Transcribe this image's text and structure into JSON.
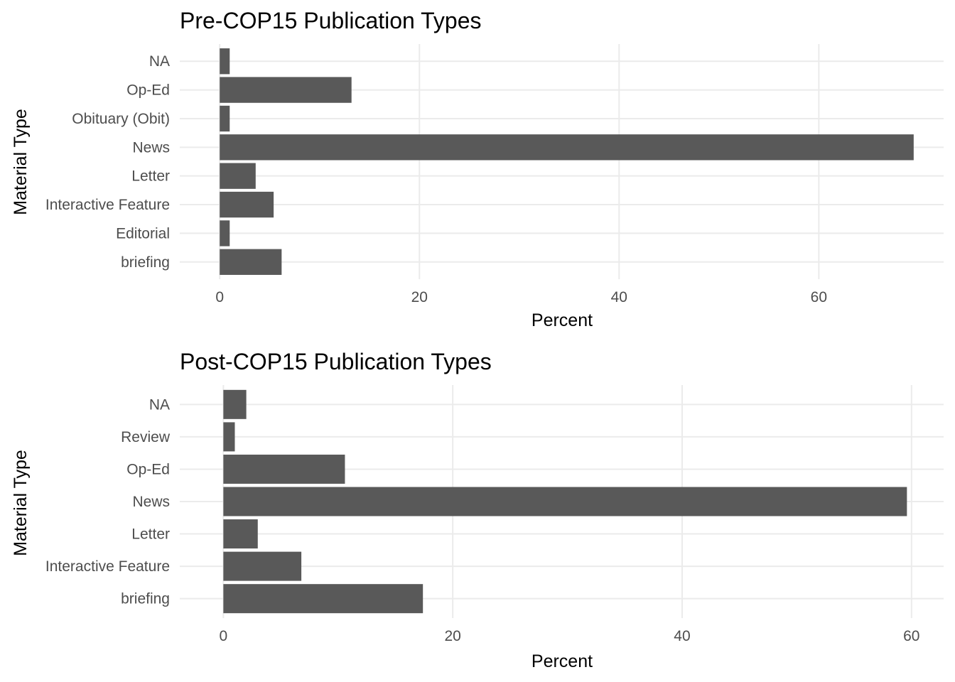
{
  "chart_data": [
    {
      "type": "bar",
      "orientation": "horizontal",
      "title": "Pre-COP15 Publication Types",
      "xlabel": "Percent",
      "ylabel": "Material Type",
      "categories": [
        "NA",
        "Op-Ed",
        "Obituary (Obit)",
        "News",
        "Letter",
        "Interactive Feature",
        "Editorial",
        "briefing"
      ],
      "values": [
        1.0,
        13.2,
        1.0,
        69.5,
        3.6,
        5.4,
        1.0,
        6.2
      ],
      "xlim": [
        -4,
        72.5
      ],
      "xticks": [
        0,
        20,
        40,
        60
      ],
      "xtick_labels": [
        "0",
        "20",
        "40",
        "60"
      ],
      "grid": true,
      "bar_color": "#595959"
    },
    {
      "type": "bar",
      "orientation": "horizontal",
      "title": "Post-COP15 Publication Types",
      "xlabel": "Percent",
      "ylabel": "Material Type",
      "categories": [
        "NA",
        "Review",
        "Op-Ed",
        "News",
        "Letter",
        "Interactive Feature",
        "briefing"
      ],
      "values": [
        2.0,
        1.0,
        10.6,
        59.6,
        3.0,
        6.8,
        17.4
      ],
      "xlim": [
        -3.8,
        62.8
      ],
      "xticks": [
        0,
        20,
        40,
        60
      ],
      "xtick_labels": [
        "0",
        "20",
        "40",
        "60"
      ],
      "grid": true,
      "bar_color": "#595959"
    }
  ]
}
